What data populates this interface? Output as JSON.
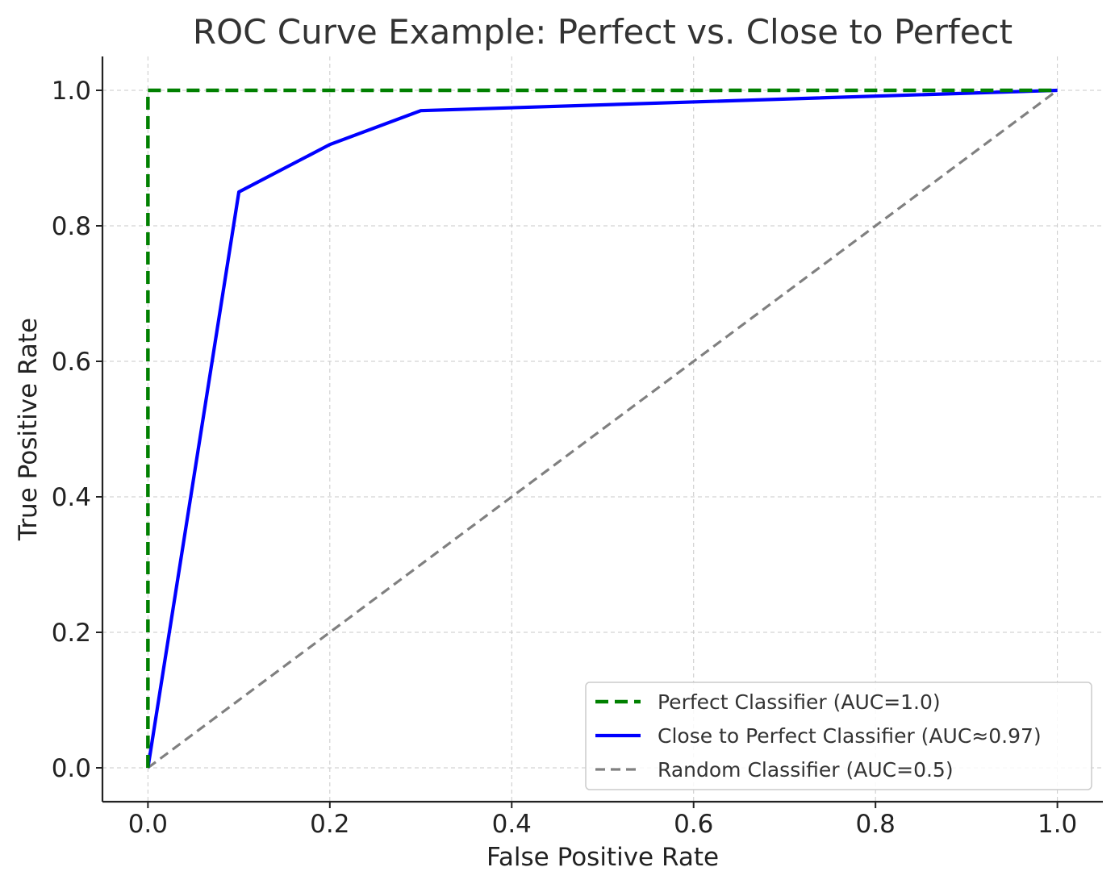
{
  "chart_data": {
    "type": "line",
    "title": "ROC Curve Example: Perfect vs. Close to Perfect",
    "xlabel": "False Positive Rate",
    "ylabel": "True Positive Rate",
    "xlim": [
      -0.05,
      1.05
    ],
    "ylim": [
      -0.05,
      1.05
    ],
    "xticks": [
      0.0,
      0.2,
      0.4,
      0.6,
      0.8,
      1.0
    ],
    "yticks": [
      0.0,
      0.2,
      0.4,
      0.6,
      0.8,
      1.0
    ],
    "xtick_labels": [
      "0.0",
      "0.2",
      "0.4",
      "0.6",
      "0.8",
      "1.0"
    ],
    "ytick_labels": [
      "0.0",
      "0.2",
      "0.4",
      "0.6",
      "0.8",
      "1.0"
    ],
    "grid": true,
    "legend_position": "bottom-right",
    "series": [
      {
        "name": "Perfect Classifier (AUC=1.0)",
        "color": "#008000",
        "line_style": "dashed",
        "x": [
          0.0,
          0.0,
          1.0
        ],
        "y": [
          0.0,
          1.0,
          1.0
        ]
      },
      {
        "name": "Close to Perfect Classifier (AUC≈0.97)",
        "color": "#0000ff",
        "line_style": "solid",
        "x": [
          0.0,
          0.1,
          0.2,
          0.3,
          1.0
        ],
        "y": [
          0.0,
          0.85,
          0.92,
          0.97,
          1.0
        ]
      },
      {
        "name": "Random Classifier (AUC=0.5)",
        "color": "#808080",
        "line_style": "dashed",
        "x": [
          0.0,
          1.0
        ],
        "y": [
          0.0,
          1.0
        ]
      }
    ]
  }
}
